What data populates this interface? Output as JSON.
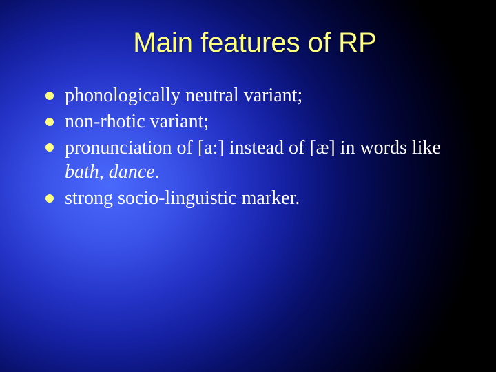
{
  "slide": {
    "title": "Main features of RP",
    "title_color": "#ffff80",
    "title_fontsize": 40,
    "title_font": "Arial",
    "body_color": "#ffffff",
    "body_fontsize": 28,
    "body_font": "Times New Roman",
    "bullet_color": "#ffff80",
    "background": {
      "type": "radial-gradient",
      "center": "22% 50%",
      "stops": [
        {
          "color": "#4a6afc",
          "at": 0
        },
        {
          "color": "#3a52e8",
          "at": 18
        },
        {
          "color": "#2534c8",
          "at": 34
        },
        {
          "color": "#1420a0",
          "at": 48
        },
        {
          "color": "#08106a",
          "at": 62
        },
        {
          "color": "#020638",
          "at": 78
        },
        {
          "color": "#000014",
          "at": 92
        },
        {
          "color": "#000000",
          "at": 100
        }
      ]
    },
    "bullets": [
      {
        "segments": [
          {
            "text": "phonologically neutral variant;",
            "style": "plain"
          }
        ]
      },
      {
        "segments": [
          {
            "text": "non-rhotic variant;",
            "style": "plain"
          }
        ]
      },
      {
        "segments": [
          {
            "text": "pronunciation of ",
            "style": "plain"
          },
          {
            "text": "[a:]",
            "style": "ipa"
          },
          {
            "text": " instead of ",
            "style": "plain"
          },
          {
            "text": "[æ]",
            "style": "ipa"
          },
          {
            "text": " in words like ",
            "style": "plain"
          },
          {
            "text": "bath, dance",
            "style": "italic"
          },
          {
            "text": ".",
            "style": "plain"
          }
        ]
      },
      {
        "segments": [
          {
            "text": "strong socio-linguistic marker.",
            "style": "plain"
          }
        ]
      }
    ]
  }
}
